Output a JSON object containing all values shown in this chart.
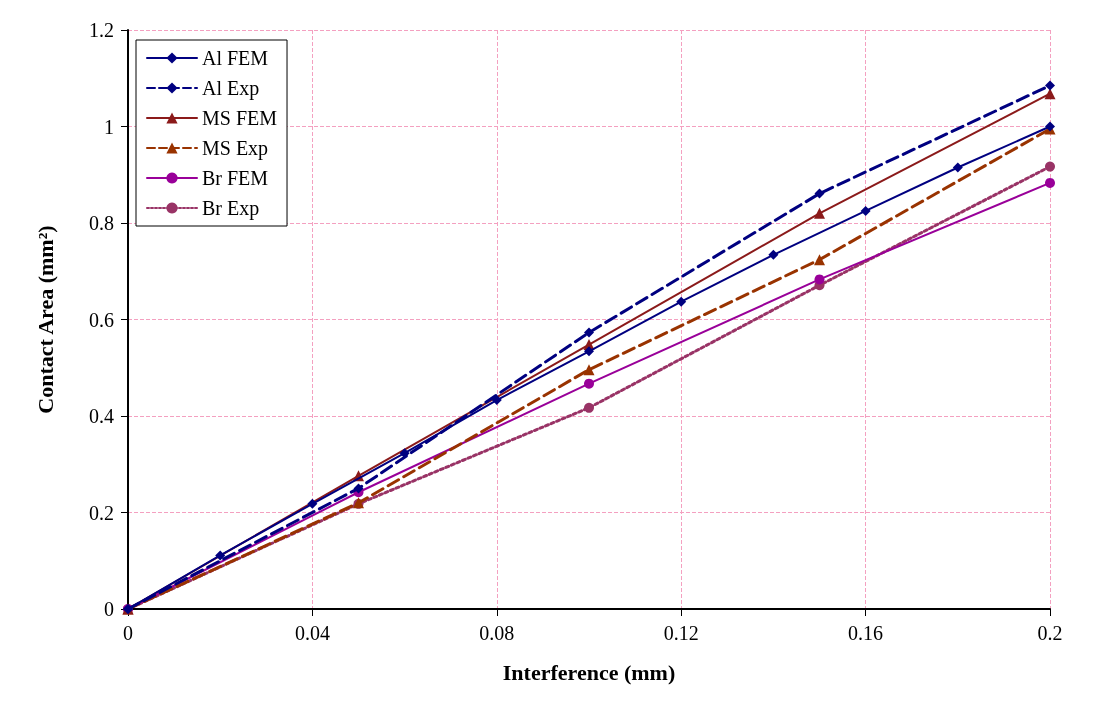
{
  "chart_data": {
    "type": "line",
    "xlabel": "Interference (mm)",
    "ylabel": "Contact Area (mm²)",
    "xlim": [
      0,
      0.2
    ],
    "xticks": [
      0,
      0.04,
      0.08,
      0.12,
      0.16,
      0.2
    ],
    "ylim": [
      0,
      1.2
    ],
    "yticks": [
      0,
      0.2,
      0.4,
      0.6,
      0.8,
      1,
      1.2
    ],
    "grid": true,
    "legend": "top left",
    "series": [
      {
        "name": "Al FEM",
        "color": "#000080",
        "marker": "diamond",
        "line_style": "solid",
        "x": [
          0,
          0.02,
          0.04,
          0.06,
          0.08,
          0.1,
          0.12,
          0.14,
          0.16,
          0.18,
          0.2
        ],
        "values": [
          0,
          0.111,
          0.218,
          0.323,
          0.433,
          0.534,
          0.637,
          0.734,
          0.825,
          0.915,
          1.0
        ]
      },
      {
        "name": "Al Exp",
        "color": "#000080",
        "marker": "diamond",
        "line_style": "dashed",
        "x": [
          0,
          0.05,
          0.1,
          0.15,
          0.2
        ],
        "values": [
          0,
          0.25,
          0.573,
          0.861,
          1.085
        ]
      },
      {
        "name": "MS FEM",
        "color": "#8b1a1a",
        "marker": "triangle",
        "line_style": "solid",
        "x": [
          0,
          0.05,
          0.1,
          0.15,
          0.2
        ],
        "values": [
          0,
          0.276,
          0.548,
          0.82,
          1.068
        ]
      },
      {
        "name": "MS Exp",
        "color": "#993300",
        "marker": "triangle",
        "line_style": "dashed",
        "x": [
          0,
          0.05,
          0.1,
          0.15,
          0.2
        ],
        "values": [
          0,
          0.22,
          0.496,
          0.724,
          0.995
        ]
      },
      {
        "name": "Br FEM",
        "color": "#990099",
        "marker": "circle",
        "line_style": "solid",
        "x": [
          0,
          0.05,
          0.1,
          0.15,
          0.2
        ],
        "values": [
          0,
          0.242,
          0.467,
          0.683,
          0.883
        ]
      },
      {
        "name": "Br Exp",
        "color": "#993366",
        "marker": "circle",
        "line_style": "dotted",
        "x": [
          0,
          0.05,
          0.1,
          0.15,
          0.2
        ],
        "values": [
          0,
          0.218,
          0.417,
          0.671,
          0.917
        ]
      }
    ]
  }
}
